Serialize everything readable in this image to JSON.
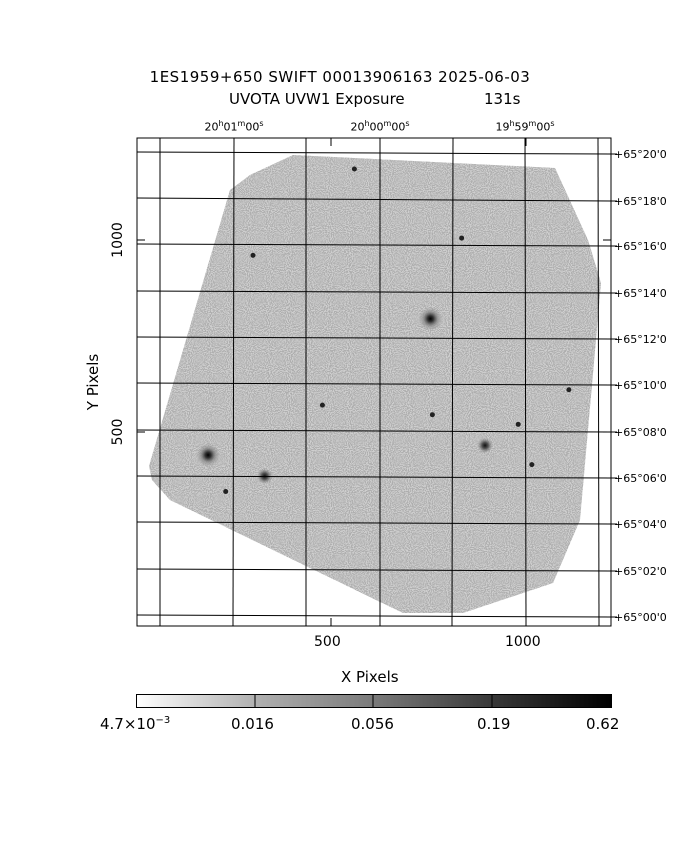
{
  "title": {
    "line1": "1ES1959+650 SWIFT 00013906163 2025-06-03",
    "line2_left": "UVOTA UVW1 Exposure",
    "line2_right": "131s"
  },
  "ra_labels": [
    {
      "h": "20",
      "m": "01",
      "s": "00"
    },
    {
      "h": "20",
      "m": "00",
      "s": "00"
    },
    {
      "h": "19",
      "m": "59",
      "s": "00"
    }
  ],
  "dec_labels": [
    "+65°20'0",
    "+65°18'0",
    "+65°16'0",
    "+65°14'0",
    "+65°12'0",
    "+65°10'0",
    "+65°08'0",
    "+65°06'0",
    "+65°04'0",
    "+65°02'0",
    "+65°00'0"
  ],
  "x_axis": {
    "label": "X Pixels",
    "ticks": [
      "500",
      "1000"
    ]
  },
  "y_axis": {
    "label": "Y Pixels",
    "ticks": [
      "500",
      "1000"
    ]
  },
  "colorbar": {
    "first_label_base": "4.7×10",
    "first_label_exp": "−3",
    "labels": [
      "0.016",
      "0.056",
      "0.19",
      "0.62"
    ]
  },
  "sources": [
    {
      "x": 755,
      "y": 795,
      "size": "bright"
    },
    {
      "x": 185,
      "y": 440,
      "size": "bright"
    },
    {
      "x": 330,
      "y": 385,
      "size": "medium"
    },
    {
      "x": 895,
      "y": 465,
      "size": "medium"
    },
    {
      "x": 478,
      "y": 570,
      "size": "small"
    },
    {
      "x": 760,
      "y": 545,
      "size": "small"
    },
    {
      "x": 560,
      "y": 1185,
      "size": "small"
    },
    {
      "x": 300,
      "y": 960,
      "size": "small"
    },
    {
      "x": 980,
      "y": 520,
      "size": "small"
    },
    {
      "x": 1110,
      "y": 610,
      "size": "small"
    },
    {
      "x": 230,
      "y": 345,
      "size": "small"
    },
    {
      "x": 1015,
      "y": 415,
      "size": "small"
    },
    {
      "x": 835,
      "y": 1005,
      "size": "small"
    }
  ]
}
